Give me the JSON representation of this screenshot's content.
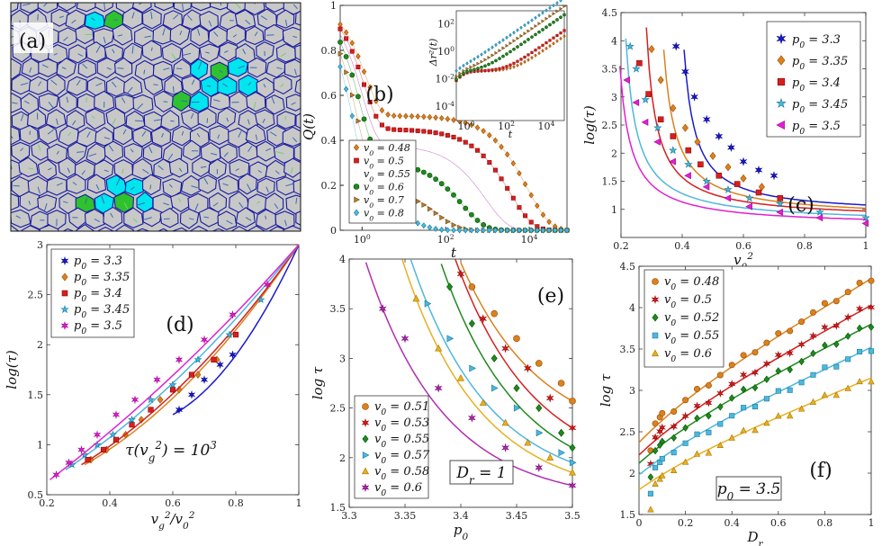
{
  "chart_data": [
    {
      "id": "a",
      "type": "image",
      "panel_label": "(a)",
      "description_palette": {
        "cell": "#c8c8c8",
        "edge": "#1a1aa0",
        "cyan": "#00e5ee",
        "green": "#2ec22e",
        "arrow": "#3a6bb0"
      }
    },
    {
      "id": "b",
      "type": "line",
      "panel_label": "(b)",
      "xscale": "log",
      "xlim": [
        0.3,
        80000
      ],
      "ylim": [
        0,
        1
      ],
      "xlabel": "t",
      "ylabel": "Q(t)",
      "xticks": [
        "10^0",
        "10^2",
        "10^4"
      ],
      "yticks": [
        "0",
        "0.2",
        "0.4",
        "0.6",
        "0.8",
        "1"
      ],
      "legend": [
        "v_0 = 0.48",
        "v_0 = 0.5",
        "v_0 = 0.55",
        "v_0 = 0.6",
        "v_0 = 0.7",
        "v_0 = 0.8"
      ],
      "series": [
        {
          "name": "v_0 = 0.48",
          "color": "#d9821e",
          "marker": "diamond",
          "plateau": 0.51,
          "tau1": 1.2,
          "tau2": 9000
        },
        {
          "name": "v_0 = 0.5",
          "color": "#d42020",
          "marker": "square",
          "plateau": 0.45,
          "tau1": 1.1,
          "tau2": 3500
        },
        {
          "name": "v_0 = 0.55",
          "color": "#b02fb0",
          "marker": "star",
          "plateau": 0.38,
          "tau1": 1.0,
          "tau2": 900
        },
        {
          "name": "v_0 = 0.6",
          "color": "#1f8a1f",
          "marker": "circle",
          "plateau": 0.31,
          "tau1": 0.9,
          "tau2": 250
        },
        {
          "name": "v_0 = 0.7",
          "color": "#b08040",
          "marker": "triangle-right",
          "plateau": 0.2,
          "tau1": 0.8,
          "tau2": 60
        },
        {
          "name": "v_0 = 0.8",
          "color": "#4fb7dc",
          "marker": "diamond",
          "plateau": 0.12,
          "tau1": 0.7,
          "tau2": 15
        }
      ],
      "inset": {
        "xscale": "log",
        "yscale": "log",
        "xlabel": "t",
        "ylabel": "Δr²(t)",
        "xticks": [
          "10^0",
          "10^2",
          "10^4"
        ],
        "yticks": [
          "10^-4",
          "10^-2",
          "10^0",
          "10^2"
        ],
        "ylim_log10": [
          -5,
          3
        ],
        "xlim_log10": [
          -0.5,
          4.9
        ]
      }
    },
    {
      "id": "c",
      "type": "scatter",
      "panel_label": "(c)",
      "xlim": [
        0.2,
        1
      ],
      "ylim": [
        0.5,
        4.5
      ],
      "xlabel": "v_0^2",
      "ylabel": "log(τ)",
      "xticks": [
        "0.2",
        "0.4",
        "0.6",
        "0.8",
        "1"
      ],
      "yticks": [
        "1",
        "1.5",
        "2",
        "2.5",
        "3",
        "3.5",
        "4",
        "4.5"
      ],
      "series": [
        {
          "name": "p_0 = 3.3",
          "color": "#1a1acc",
          "marker": "star6",
          "points": [
            [
              0.38,
              3.9
            ],
            [
              0.41,
              3.45
            ],
            [
              0.44,
              3.0
            ],
            [
              0.48,
              2.6
            ],
            [
              0.52,
              2.3
            ],
            [
              0.56,
              2.1
            ],
            [
              0.6,
              1.85
            ],
            [
              0.65,
              1.7
            ],
            [
              0.7,
              1.6
            ]
          ],
          "fit": {
            "a": 0.81,
            "b": 0.118,
            "x0": 0.37
          }
        },
        {
          "name": "p_0 = 3.35",
          "color": "#d9821e",
          "marker": "diamond",
          "points": [
            [
              0.3,
              3.85
            ],
            [
              0.33,
              3.3
            ],
            [
              0.37,
              2.8
            ],
            [
              0.41,
              2.45
            ],
            [
              0.45,
              2.2
            ],
            [
              0.5,
              1.95
            ],
            [
              0.55,
              1.75
            ],
            [
              0.6,
              1.55
            ],
            [
              0.66,
              1.4
            ]
          ],
          "fit": {
            "a": 0.75,
            "b": 0.132,
            "x0": 0.3
          }
        },
        {
          "name": "p_0 = 3.4",
          "color": "#d42020",
          "marker": "square",
          "points": [
            [
              0.26,
              3.6
            ],
            [
              0.29,
              3.05
            ],
            [
              0.33,
              2.6
            ],
            [
              0.37,
              2.3
            ],
            [
              0.42,
              2.05
            ],
            [
              0.46,
              1.8
            ],
            [
              0.52,
              1.6
            ],
            [
              0.58,
              1.45
            ],
            [
              0.65,
              1.3
            ],
            [
              0.72,
              1.2
            ]
          ],
          "fit": {
            "a": 0.72,
            "b": 0.125,
            "x0": 0.25
          }
        },
        {
          "name": "p_0 = 3.45",
          "color": "#4fb7dc",
          "marker": "star5",
          "points": [
            [
              0.23,
              3.9
            ],
            [
              0.25,
              3.5
            ],
            [
              0.28,
              2.95
            ],
            [
              0.32,
              2.45
            ],
            [
              0.37,
              2.05
            ],
            [
              0.42,
              1.8
            ],
            [
              0.48,
              1.5
            ],
            [
              0.55,
              1.35
            ],
            [
              0.62,
              1.2
            ],
            [
              0.72,
              1.1
            ],
            [
              0.85,
              0.95
            ],
            [
              1.0,
              0.85
            ]
          ],
          "fit": {
            "a": 0.65,
            "b": 0.13,
            "x0": 0.18
          }
        },
        {
          "name": "p_0 = 3.5",
          "color": "#e020d0",
          "marker": "triangle-left",
          "points": [
            [
              0.22,
              3.3
            ],
            [
              0.25,
              2.9
            ],
            [
              0.28,
              2.55
            ],
            [
              0.32,
              2.2
            ],
            [
              0.37,
              1.85
            ],
            [
              0.42,
              1.6
            ],
            [
              0.48,
              1.4
            ],
            [
              0.55,
              1.2
            ],
            [
              0.62,
              1.05
            ],
            [
              0.72,
              0.95
            ],
            [
              0.85,
              0.85
            ],
            [
              1.0,
              0.75
            ]
          ],
          "fit": {
            "a": 0.6,
            "b": 0.115,
            "x0": 0.16
          }
        }
      ]
    },
    {
      "id": "d",
      "type": "scatter",
      "panel_label": "(d)",
      "xlim": [
        0.2,
        1
      ],
      "ylim": [
        0.5,
        3
      ],
      "xlabel": "v_g^2/v_0^2",
      "ylabel": "log(τ)",
      "xticks": [
        "0.2",
        "0.4",
        "0.6",
        "0.8",
        "1"
      ],
      "yticks": [
        "0.5",
        "1",
        "1.5",
        "2",
        "2.5",
        "3"
      ],
      "annotation": "τ(v_g^2) = 10^3",
      "series": [
        {
          "name": "p_0 = 3.3",
          "color": "#1a1acc",
          "marker": "star6",
          "points": [
            [
              0.62,
              1.35
            ],
            [
              0.66,
              1.5
            ],
            [
              0.7,
              1.65
            ],
            [
              0.75,
              1.8
            ],
            [
              0.79,
              1.9
            ]
          ],
          "curv": 0.6
        },
        {
          "name": "p_0 = 3.35",
          "color": "#d9821e",
          "marker": "diamond",
          "points": [
            [
              0.34,
              0.85
            ],
            [
              0.39,
              0.95
            ],
            [
              0.45,
              1.1
            ],
            [
              0.5,
              1.25
            ],
            [
              0.56,
              1.45
            ],
            [
              0.62,
              1.55
            ],
            [
              0.68,
              1.7
            ],
            [
              0.74,
              1.85
            ]
          ],
          "curv": 0.45
        },
        {
          "name": "p_0 = 3.4",
          "color": "#d42020",
          "marker": "square",
          "points": [
            [
              0.33,
              0.85
            ],
            [
              0.38,
              0.95
            ],
            [
              0.42,
              1.05
            ],
            [
              0.47,
              1.2
            ],
            [
              0.53,
              1.35
            ],
            [
              0.6,
              1.55
            ],
            [
              0.66,
              1.7
            ],
            [
              0.73,
              1.85
            ],
            [
              0.8,
              2.1
            ]
          ],
          "curv": 0.4
        },
        {
          "name": "p_0 = 3.45",
          "color": "#4fb7dc",
          "marker": "star5",
          "points": [
            [
              0.28,
              0.8
            ],
            [
              0.32,
              0.9
            ],
            [
              0.36,
              1.0
            ],
            [
              0.41,
              1.1
            ],
            [
              0.47,
              1.25
            ],
            [
              0.53,
              1.45
            ],
            [
              0.6,
              1.6
            ],
            [
              0.68,
              1.85
            ],
            [
              0.78,
              2.1
            ],
            [
              0.88,
              2.45
            ]
          ],
          "curv": 0.3
        },
        {
          "name": "p_0 = 3.5",
          "color": "#e020d0",
          "marker": "star6",
          "points": [
            [
              0.23,
              0.7
            ],
            [
              0.27,
              0.82
            ],
            [
              0.31,
              0.95
            ],
            [
              0.36,
              1.1
            ],
            [
              0.42,
              1.3
            ],
            [
              0.48,
              1.45
            ],
            [
              0.55,
              1.65
            ],
            [
              0.62,
              1.85
            ],
            [
              0.7,
              2.05
            ],
            [
              0.79,
              2.3
            ],
            [
              0.9,
              2.6
            ]
          ],
          "curv": 0.2
        }
      ]
    },
    {
      "id": "e",
      "type": "scatter",
      "panel_label": "(e)",
      "xlim": [
        3.3,
        3.5
      ],
      "ylim": [
        1.5,
        4
      ],
      "xlabel": "p_0",
      "ylabel": "log τ",
      "xticks": [
        "3.3",
        "3.35",
        "3.4",
        "3.45",
        "3.5"
      ],
      "yticks": [
        "1.5",
        "2",
        "2.5",
        "3",
        "3.5",
        "4"
      ],
      "annotation": "D_r = 1",
      "series": [
        {
          "name": "v_0 = 0.51",
          "color": "#d9821e",
          "marker": "circle",
          "points": [
            [
              3.41,
              3.72
            ],
            [
              3.43,
              3.45
            ],
            [
              3.45,
              3.2
            ],
            [
              3.47,
              2.95
            ],
            [
              3.49,
              2.75
            ],
            [
              3.5,
              2.57
            ]
          ],
          "fit": {
            "a": 0.8,
            "x0": 3.385,
            "k": 0.018
          }
        },
        {
          "name": "v_0 = 0.53",
          "color": "#d42020",
          "marker": "star6",
          "points": [
            [
              3.4,
              3.85
            ],
            [
              3.42,
              3.4
            ],
            [
              3.44,
              3.1
            ],
            [
              3.46,
              2.9
            ],
            [
              3.48,
              2.6
            ],
            [
              3.5,
              2.3
            ]
          ],
          "fit": {
            "a": 0.5,
            "x0": 3.372,
            "k": 0.024
          }
        },
        {
          "name": "v_0 = 0.55",
          "color": "#1f8a1f",
          "marker": "diamond",
          "points": [
            [
              3.39,
              3.72
            ],
            [
              3.41,
              3.35
            ],
            [
              3.43,
              3.0
            ],
            [
              3.45,
              2.7
            ],
            [
              3.47,
              2.5
            ],
            [
              3.49,
              2.25
            ],
            [
              3.5,
              2.1
            ]
          ],
          "fit": {
            "a": 0.4,
            "x0": 3.36,
            "k": 0.026
          }
        },
        {
          "name": "v_0 = 0.57",
          "color": "#4fb7dc",
          "marker": "triangle-right",
          "points": [
            [
              3.37,
              3.55
            ],
            [
              3.39,
              3.2
            ],
            [
              3.41,
              2.9
            ],
            [
              3.43,
              2.7
            ],
            [
              3.45,
              2.5
            ],
            [
              3.47,
              2.25
            ],
            [
              3.49,
              2.05
            ],
            [
              3.5,
              1.95
            ]
          ],
          "fit": {
            "a": 0.3,
            "x0": 3.345,
            "k": 0.03
          }
        },
        {
          "name": "v_0 = 0.58",
          "color": "#e6b020",
          "marker": "triangle-up",
          "points": [
            [
              3.36,
              3.6
            ],
            [
              3.38,
              3.1
            ],
            [
              3.4,
              2.8
            ],
            [
              3.42,
              2.55
            ],
            [
              3.44,
              2.35
            ],
            [
              3.46,
              2.15
            ],
            [
              3.48,
              2.0
            ],
            [
              3.5,
              1.85
            ]
          ],
          "fit": {
            "a": 0.2,
            "x0": 3.34,
            "k": 0.032
          }
        },
        {
          "name": "v_0 = 0.6",
          "color": "#b02fb0",
          "marker": "star6",
          "points": [
            [
              3.33,
              3.5
            ],
            [
              3.35,
              3.2
            ],
            [
              3.38,
              2.7
            ],
            [
              3.41,
              2.4
            ],
            [
              3.44,
              2.1
            ],
            [
              3.47,
              1.9
            ],
            [
              3.5,
              1.72
            ]
          ],
          "fit": {
            "a": 0.1,
            "x0": 3.27,
            "k": 0.06
          }
        }
      ]
    },
    {
      "id": "f",
      "type": "scatter",
      "panel_label": "(f)",
      "xlim": [
        0,
        1
      ],
      "ylim": [
        1.5,
        4.5
      ],
      "xlabel": "D_r",
      "ylabel": "log τ",
      "xticks": [
        "0",
        "0.2",
        "0.4",
        "0.6",
        "0.8",
        "1"
      ],
      "yticks": [
        "1.5",
        "2",
        "2.5",
        "3",
        "3.5",
        "4",
        "4.5"
      ],
      "annotation": "p_0 = 3.5",
      "series": [
        {
          "name": "v_0 = 0.48",
          "color": "#d9821e",
          "marker": "circle",
          "start": 2.37,
          "end": 4.35,
          "offset": 0.05
        },
        {
          "name": "v_0 = 0.5",
          "color": "#d42020",
          "marker": "star6",
          "start": 2.22,
          "end": 4.03,
          "offset": 0.05
        },
        {
          "name": "v_0 = 0.52",
          "color": "#1f8a1f",
          "marker": "diamond",
          "start": 2.12,
          "end": 3.8,
          "offset": 0.0
        },
        {
          "name": "v_0 = 0.55",
          "color": "#4fb7dc",
          "marker": "square",
          "start": 1.98,
          "end": 3.52,
          "offset": -0.05
        },
        {
          "name": "v_0 = 0.6",
          "color": "#e6b020",
          "marker": "triangle-up",
          "start": 1.8,
          "end": 3.15,
          "offset": -0.05
        }
      ]
    }
  ]
}
